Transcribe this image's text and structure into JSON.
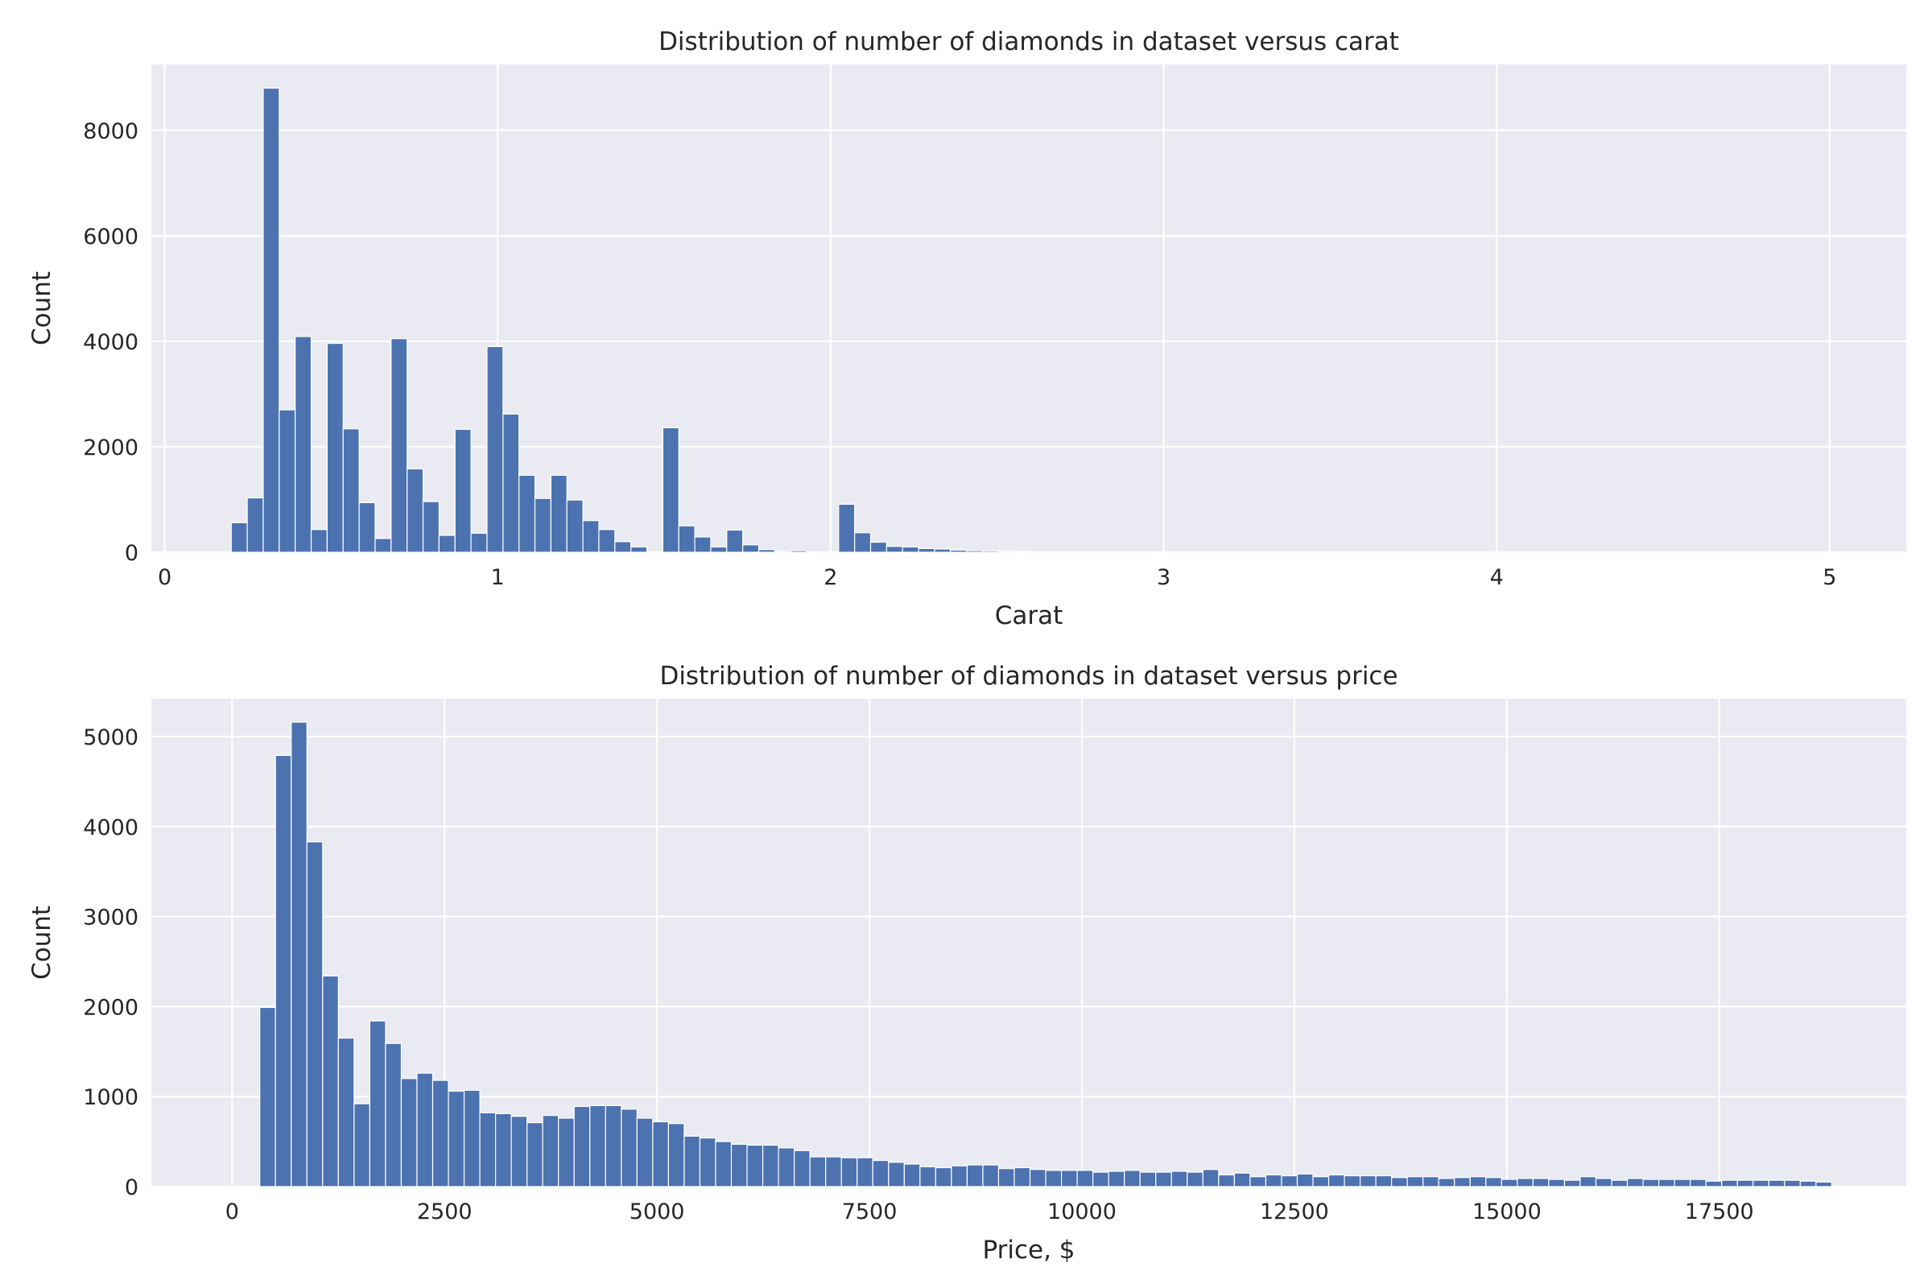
{
  "colors": {
    "panel_bg": "#eaeaf2",
    "grid": "#ffffff",
    "bar": "#4c72b0",
    "text": "#262626"
  },
  "chart_data": [
    {
      "type": "bar",
      "title": "Distribution of number of diamonds in dataset versus carat",
      "xlabel": "Carat",
      "ylabel": "Count",
      "xlim": [
        -0.04,
        5.23
      ],
      "ylim": [
        0,
        9250
      ],
      "xticks": [
        "0",
        "1",
        "2",
        "3",
        "4",
        "5"
      ],
      "yticks": [
        "0",
        "2000",
        "4000",
        "6000",
        "8000"
      ],
      "grid": true,
      "bin_start": 0.2,
      "bin_width": 0.048,
      "values": [
        560,
        1030,
        8800,
        2700,
        4090,
        430,
        3960,
        2340,
        940,
        260,
        4050,
        1580,
        960,
        320,
        2330,
        360,
        3900,
        2620,
        1460,
        1020,
        1460,
        990,
        600,
        430,
        200,
        100,
        5,
        2360,
        500,
        290,
        100,
        420,
        140,
        50,
        20,
        30,
        10,
        5,
        910,
        370,
        190,
        110,
        100,
        70,
        60,
        40,
        30,
        25,
        20,
        15,
        10,
        8,
        5,
        4,
        3,
        3,
        2,
        2,
        2,
        1,
        1,
        1,
        1,
        1,
        1,
        1,
        1,
        1,
        1,
        1,
        1,
        1,
        1,
        1,
        1,
        1,
        1,
        1,
        1,
        1,
        1,
        1,
        1,
        1,
        1,
        1,
        1,
        1,
        1,
        1,
        1,
        1,
        1,
        1,
        1,
        1,
        1,
        1,
        1,
        1
      ]
    },
    {
      "type": "bar",
      "title": "Distribution of number of diamonds in dataset versus price",
      "xlabel": "Price, $",
      "ylabel": "Count",
      "xlim": [
        -950,
        19700
      ],
      "ylim": [
        0,
        5420
      ],
      "xticks": [
        "0",
        "2500",
        "5000",
        "7500",
        "10000",
        "12500",
        "15000",
        "17500"
      ],
      "yticks": [
        "0",
        "1000",
        "2000",
        "3000",
        "4000",
        "5000"
      ],
      "grid": true,
      "bin_start": 326,
      "bin_width": 184.97,
      "values": [
        1990,
        4790,
        5160,
        3830,
        2340,
        1650,
        920,
        1840,
        1590,
        1200,
        1260,
        1180,
        1060,
        1070,
        820,
        810,
        780,
        710,
        790,
        760,
        890,
        900,
        900,
        860,
        760,
        720,
        700,
        560,
        540,
        500,
        470,
        460,
        460,
        430,
        400,
        330,
        330,
        320,
        320,
        290,
        270,
        250,
        220,
        210,
        230,
        240,
        240,
        200,
        210,
        190,
        180,
        180,
        180,
        160,
        170,
        180,
        160,
        160,
        170,
        160,
        190,
        130,
        150,
        110,
        130,
        120,
        140,
        110,
        130,
        120,
        120,
        120,
        100,
        110,
        110,
        90,
        100,
        110,
        100,
        80,
        90,
        90,
        80,
        70,
        110,
        90,
        70,
        90,
        80,
        80,
        80,
        80,
        60,
        70,
        70,
        70,
        70,
        70,
        60,
        50
      ]
    }
  ]
}
